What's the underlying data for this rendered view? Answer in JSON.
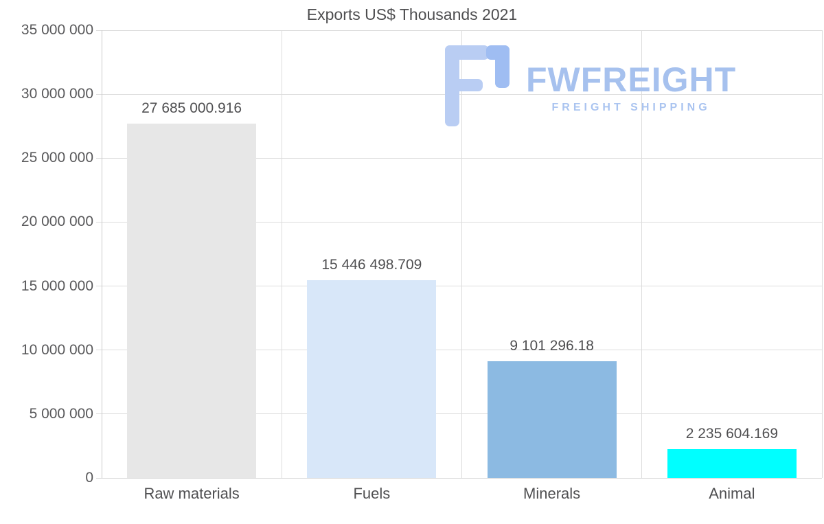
{
  "title": "Exports US$ Thousands 2021",
  "logo": {
    "name": "FWFREIGHT",
    "tagline": "FREIGHT SHIPPING",
    "color_primary": "#b9cdf3",
    "color_secondary": "#9fbdf2",
    "text_color": "#a6c1ee"
  },
  "chart_data": {
    "type": "bar",
    "title": "Exports US$ Thousands 2021",
    "categories": [
      "Raw materials",
      "Fuels",
      "Minerals",
      "Animal"
    ],
    "values": [
      27685000.916,
      15446498.709,
      9101296.18,
      2235604.169
    ],
    "value_labels": [
      "27 685 000.916",
      "15 446 498.709",
      "9 101 296.18",
      "2 235 604.169"
    ],
    "bar_colors": [
      "#e7e7e7",
      "#d8e7f9",
      "#8cbae2",
      "#00ffff"
    ],
    "xlabel": "",
    "ylabel": "",
    "ylim": [
      0,
      35000000
    ],
    "ytick_step": 5000000,
    "ytick_labels": [
      "0",
      "5 000 000",
      "10 000 000",
      "15 000 000",
      "20 000 000",
      "25 000 000",
      "30 000 000",
      "35 000 000"
    ],
    "grid": true,
    "legend": false
  }
}
